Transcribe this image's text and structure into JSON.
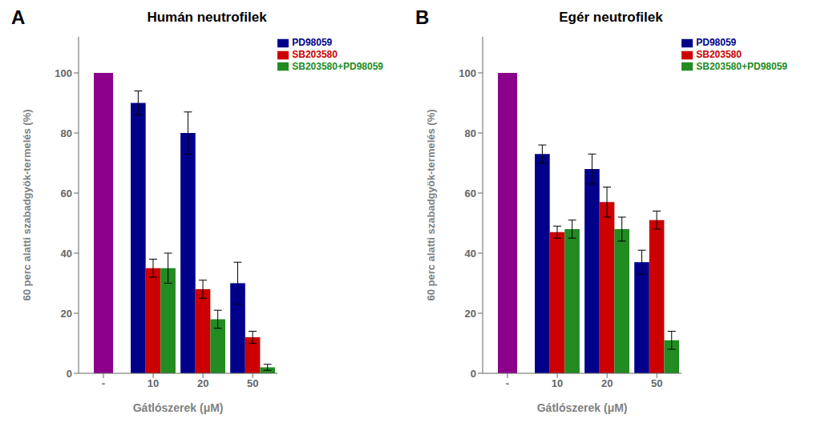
{
  "chart_data": [
    {
      "type": "bar",
      "title": "Humán neutrofilek",
      "annotations": [
        "A"
      ],
      "xlabel": "Gátlószerek (μM)",
      "ylabel": "60 perc alatti szabadgyök-termelés (%)",
      "categories": [
        "-",
        "10",
        "20",
        "50"
      ],
      "series": [
        {
          "color": "#8B008B",
          "values": [
            100,
            null,
            null,
            null
          ]
        },
        {
          "name": "PD98059",
          "color": "#00008B",
          "values": [
            null,
            90,
            80,
            30
          ],
          "errors": [
            null,
            4,
            7,
            7
          ]
        },
        {
          "name": "SB203580",
          "color": "#CC0000",
          "values": [
            null,
            35,
            28,
            12
          ],
          "errors": [
            null,
            3,
            3,
            2
          ]
        },
        {
          "name": "SB203580+PD98059",
          "color": "#228B22",
          "values": [
            null,
            35,
            18,
            2
          ],
          "errors": [
            null,
            5,
            3,
            1
          ]
        }
      ],
      "ylim": [
        0,
        112
      ],
      "yticks": [
        0,
        20,
        40,
        60,
        80,
        100
      ],
      "legend": "upper right",
      "grid": false
    },
    {
      "type": "bar",
      "title": "Egér neutrofilek",
      "annotations": [
        "B"
      ],
      "xlabel": "Gátlószerek (μM)",
      "ylabel": "60 perc alatti szabadgyök-termelés (%)",
      "categories": [
        "-",
        "10",
        "20",
        "50"
      ],
      "series": [
        {
          "color": "#8B008B",
          "values": [
            100,
            null,
            null,
            null
          ]
        },
        {
          "name": "PD98059",
          "color": "#00008B",
          "values": [
            null,
            73,
            68,
            37
          ],
          "errors": [
            null,
            3,
            5,
            4
          ]
        },
        {
          "name": "SB203580",
          "color": "#CC0000",
          "values": [
            null,
            47,
            57,
            51
          ],
          "errors": [
            null,
            2,
            5,
            3
          ]
        },
        {
          "name": "SB203580+PD98059",
          "color": "#228B22",
          "values": [
            null,
            48,
            48,
            11
          ],
          "errors": [
            null,
            3,
            4,
            3
          ]
        }
      ],
      "ylim": [
        0,
        112
      ],
      "yticks": [
        0,
        20,
        40,
        60,
        80,
        100
      ],
      "legend": "upper right",
      "grid": false
    }
  ]
}
